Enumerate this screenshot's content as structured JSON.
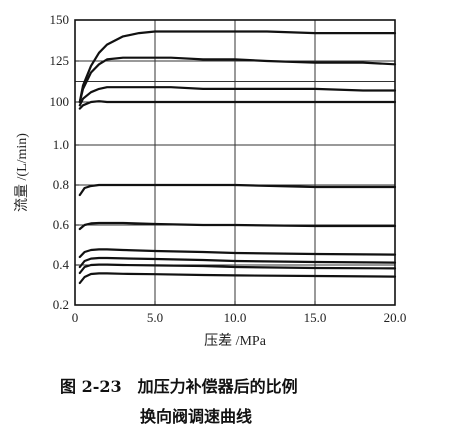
{
  "chart_data": {
    "type": "line",
    "xlabel": "压差 /MPa",
    "ylabel": "流量 /(L/min)",
    "x_ticks": [
      "0",
      "5.0",
      "10.0",
      "15.0",
      "20.0"
    ],
    "y_ticks": [
      "0.2",
      "0.4",
      "0.6",
      "0.8",
      "1.0",
      "100",
      "125",
      "150"
    ],
    "xlim": [
      0,
      20
    ],
    "grid": true,
    "series": [
      {
        "x": [
          0.3,
          0.5,
          1.0,
          1.5,
          2,
          3,
          4,
          5,
          6,
          8,
          10,
          12,
          15,
          18,
          20
        ],
        "y": [
          100,
          110,
          122,
          130,
          135,
          140,
          142,
          143,
          143,
          143,
          143,
          143,
          142,
          142,
          142
        ]
      },
      {
        "x": [
          0.3,
          0.5,
          1.0,
          1.5,
          2,
          3,
          4,
          6,
          8,
          10,
          12,
          15,
          18,
          20
        ],
        "y": [
          100,
          108,
          118,
          123,
          126,
          127,
          127,
          127,
          126,
          126,
          125,
          124,
          124,
          123
        ]
      },
      {
        "x": [
          0.3,
          0.5,
          1.0,
          1.5,
          2,
          3,
          4,
          6,
          8,
          10,
          12,
          15,
          18,
          20
        ],
        "y": [
          98,
          102,
          106,
          108,
          109,
          109,
          109,
          109,
          108,
          108,
          108,
          108,
          107,
          107
        ]
      },
      {
        "x": [
          0.3,
          0.5,
          1.0,
          1.5,
          2,
          3,
          5,
          8,
          10,
          15,
          20
        ],
        "y": [
          96,
          98,
          100,
          100.5,
          100,
          100,
          100,
          100,
          100,
          100,
          100
        ]
      },
      {
        "x": [
          0.3,
          0.6,
          1.0,
          1.5,
          2,
          3,
          5,
          8,
          10,
          15,
          20
        ],
        "y": [
          0.75,
          0.785,
          0.795,
          0.8,
          0.8,
          0.8,
          0.8,
          0.8,
          0.8,
          0.79,
          0.79
        ]
      },
      {
        "x": [
          0.3,
          0.6,
          1.0,
          1.5,
          2,
          3,
          5,
          8,
          10,
          15,
          20
        ],
        "y": [
          0.58,
          0.6,
          0.608,
          0.61,
          0.61,
          0.61,
          0.605,
          0.6,
          0.6,
          0.595,
          0.595
        ]
      },
      {
        "x": [
          0.3,
          0.6,
          1.0,
          1.5,
          2,
          3,
          5,
          8,
          10,
          15,
          20
        ],
        "y": [
          0.44,
          0.465,
          0.475,
          0.478,
          0.478,
          0.475,
          0.47,
          0.465,
          0.46,
          0.455,
          0.452
        ]
      },
      {
        "x": [
          0.3,
          0.6,
          1.0,
          1.5,
          2,
          3,
          5,
          8,
          10,
          15,
          20
        ],
        "y": [
          0.39,
          0.42,
          0.432,
          0.435,
          0.435,
          0.433,
          0.43,
          0.425,
          0.42,
          0.415,
          0.412
        ]
      },
      {
        "x": [
          0.3,
          0.6,
          1.0,
          1.5,
          2,
          3,
          5,
          8,
          10,
          15,
          20
        ],
        "y": [
          0.36,
          0.39,
          0.4,
          0.402,
          0.402,
          0.4,
          0.398,
          0.395,
          0.39,
          0.385,
          0.383
        ]
      },
      {
        "x": [
          0.3,
          0.6,
          1.0,
          1.5,
          2,
          3,
          5,
          8,
          10,
          15,
          20
        ],
        "y": [
          0.31,
          0.34,
          0.355,
          0.358,
          0.358,
          0.356,
          0.354,
          0.35,
          0.348,
          0.345,
          0.342
        ]
      }
    ]
  },
  "caption": {
    "line1": "图 2-23　加压力补偿器后的比例",
    "line2": "换向阀调速曲线"
  }
}
